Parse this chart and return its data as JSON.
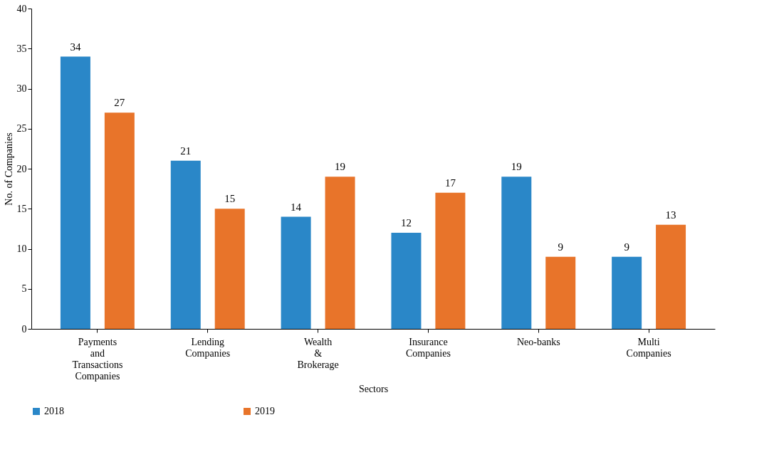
{
  "chart_data": {
    "type": "bar",
    "xlabel": "Sectors",
    "ylabel": "No. of Companies",
    "categories": [
      "Payments and Transactions Companies",
      "Lending Companies",
      "Wealth & Brokerage",
      "Insurance Companies",
      "Neo-banks",
      "Multi Companies"
    ],
    "series": [
      {
        "name": "2018",
        "color": "#2a87c8",
        "values": [
          34,
          21,
          14,
          12,
          19,
          9
        ]
      },
      {
        "name": "2019",
        "color": "#e8742a",
        "values": [
          27,
          15,
          19,
          17,
          9,
          13
        ]
      }
    ],
    "ylim": [
      0,
      40
    ],
    "yticks": [
      0,
      5,
      10,
      15,
      20,
      25,
      30,
      35,
      40
    ],
    "data_labels": true,
    "grid": false,
    "legend": "bottom"
  }
}
